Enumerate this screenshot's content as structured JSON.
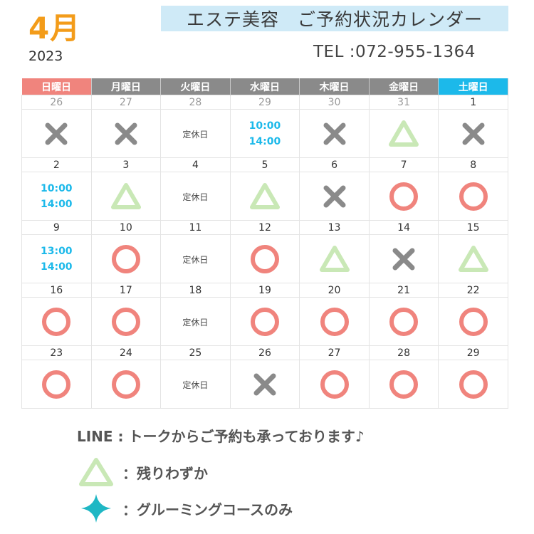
{
  "header": {
    "month": "4月",
    "year": "2023",
    "title": "エステ美容　ご予約状況カレンダー",
    "tel": "TEL :072-955-1364"
  },
  "colors": {
    "circle": "#f0847d",
    "triangle": "#c9e8b6",
    "cross": "#8a8a8a",
    "hours": "#1cb9ea",
    "sunday_header": "#f0847d",
    "saturday_header": "#1cb9ea",
    "weekday_header": "#8a8a8a",
    "title_banner": "#cfeaf7",
    "month": "#f39c1a"
  },
  "calendar": {
    "weekdays": [
      "日曜日",
      "月曜日",
      "火曜日",
      "水曜日",
      "木曜日",
      "金曜日",
      "土曜日"
    ],
    "weeks": [
      [
        {
          "day": "26",
          "prev": true,
          "status": "cross"
        },
        {
          "day": "27",
          "prev": true,
          "status": "cross"
        },
        {
          "day": "28",
          "prev": true,
          "status": "closed",
          "text": "定休日"
        },
        {
          "day": "29",
          "prev": true,
          "status": "hours",
          "lines": [
            "10:00",
            "14:00"
          ]
        },
        {
          "day": "30",
          "prev": true,
          "status": "cross"
        },
        {
          "day": "31",
          "prev": true,
          "status": "triangle"
        },
        {
          "day": "1",
          "status": "cross"
        }
      ],
      [
        {
          "day": "2",
          "status": "hours",
          "lines": [
            "10:00",
            "14:00"
          ]
        },
        {
          "day": "3",
          "status": "triangle"
        },
        {
          "day": "4",
          "status": "closed",
          "text": "定休日"
        },
        {
          "day": "5",
          "status": "triangle"
        },
        {
          "day": "6",
          "status": "cross"
        },
        {
          "day": "7",
          "status": "circle"
        },
        {
          "day": "8",
          "status": "circle"
        }
      ],
      [
        {
          "day": "9",
          "status": "hours",
          "lines": [
            "13:00",
            "14:00"
          ]
        },
        {
          "day": "10",
          "status": "circle"
        },
        {
          "day": "11",
          "status": "closed",
          "text": "定休日"
        },
        {
          "day": "12",
          "status": "circle"
        },
        {
          "day": "13",
          "status": "triangle"
        },
        {
          "day": "14",
          "status": "cross"
        },
        {
          "day": "15",
          "status": "triangle"
        }
      ],
      [
        {
          "day": "16",
          "status": "circle"
        },
        {
          "day": "17",
          "status": "circle"
        },
        {
          "day": "18",
          "status": "closed",
          "text": "定休日"
        },
        {
          "day": "19",
          "status": "circle"
        },
        {
          "day": "20",
          "status": "circle"
        },
        {
          "day": "21",
          "status": "circle"
        },
        {
          "day": "22",
          "status": "circle"
        }
      ],
      [
        {
          "day": "23",
          "status": "circle"
        },
        {
          "day": "24",
          "status": "circle"
        },
        {
          "day": "25",
          "status": "closed",
          "text": "定休日"
        },
        {
          "day": "26",
          "status": "cross"
        },
        {
          "day": "27",
          "status": "circle"
        },
        {
          "day": "28",
          "status": "circle"
        },
        {
          "day": "29",
          "status": "circle"
        }
      ]
    ]
  },
  "footer": {
    "line_note": "LINE : トークからご予約も承っております♪",
    "legend": [
      {
        "icon": "triangle-icon",
        "label": "：残りわずか"
      },
      {
        "icon": "sparkle-icon",
        "label": "：グルーミングコースのみ"
      }
    ]
  }
}
